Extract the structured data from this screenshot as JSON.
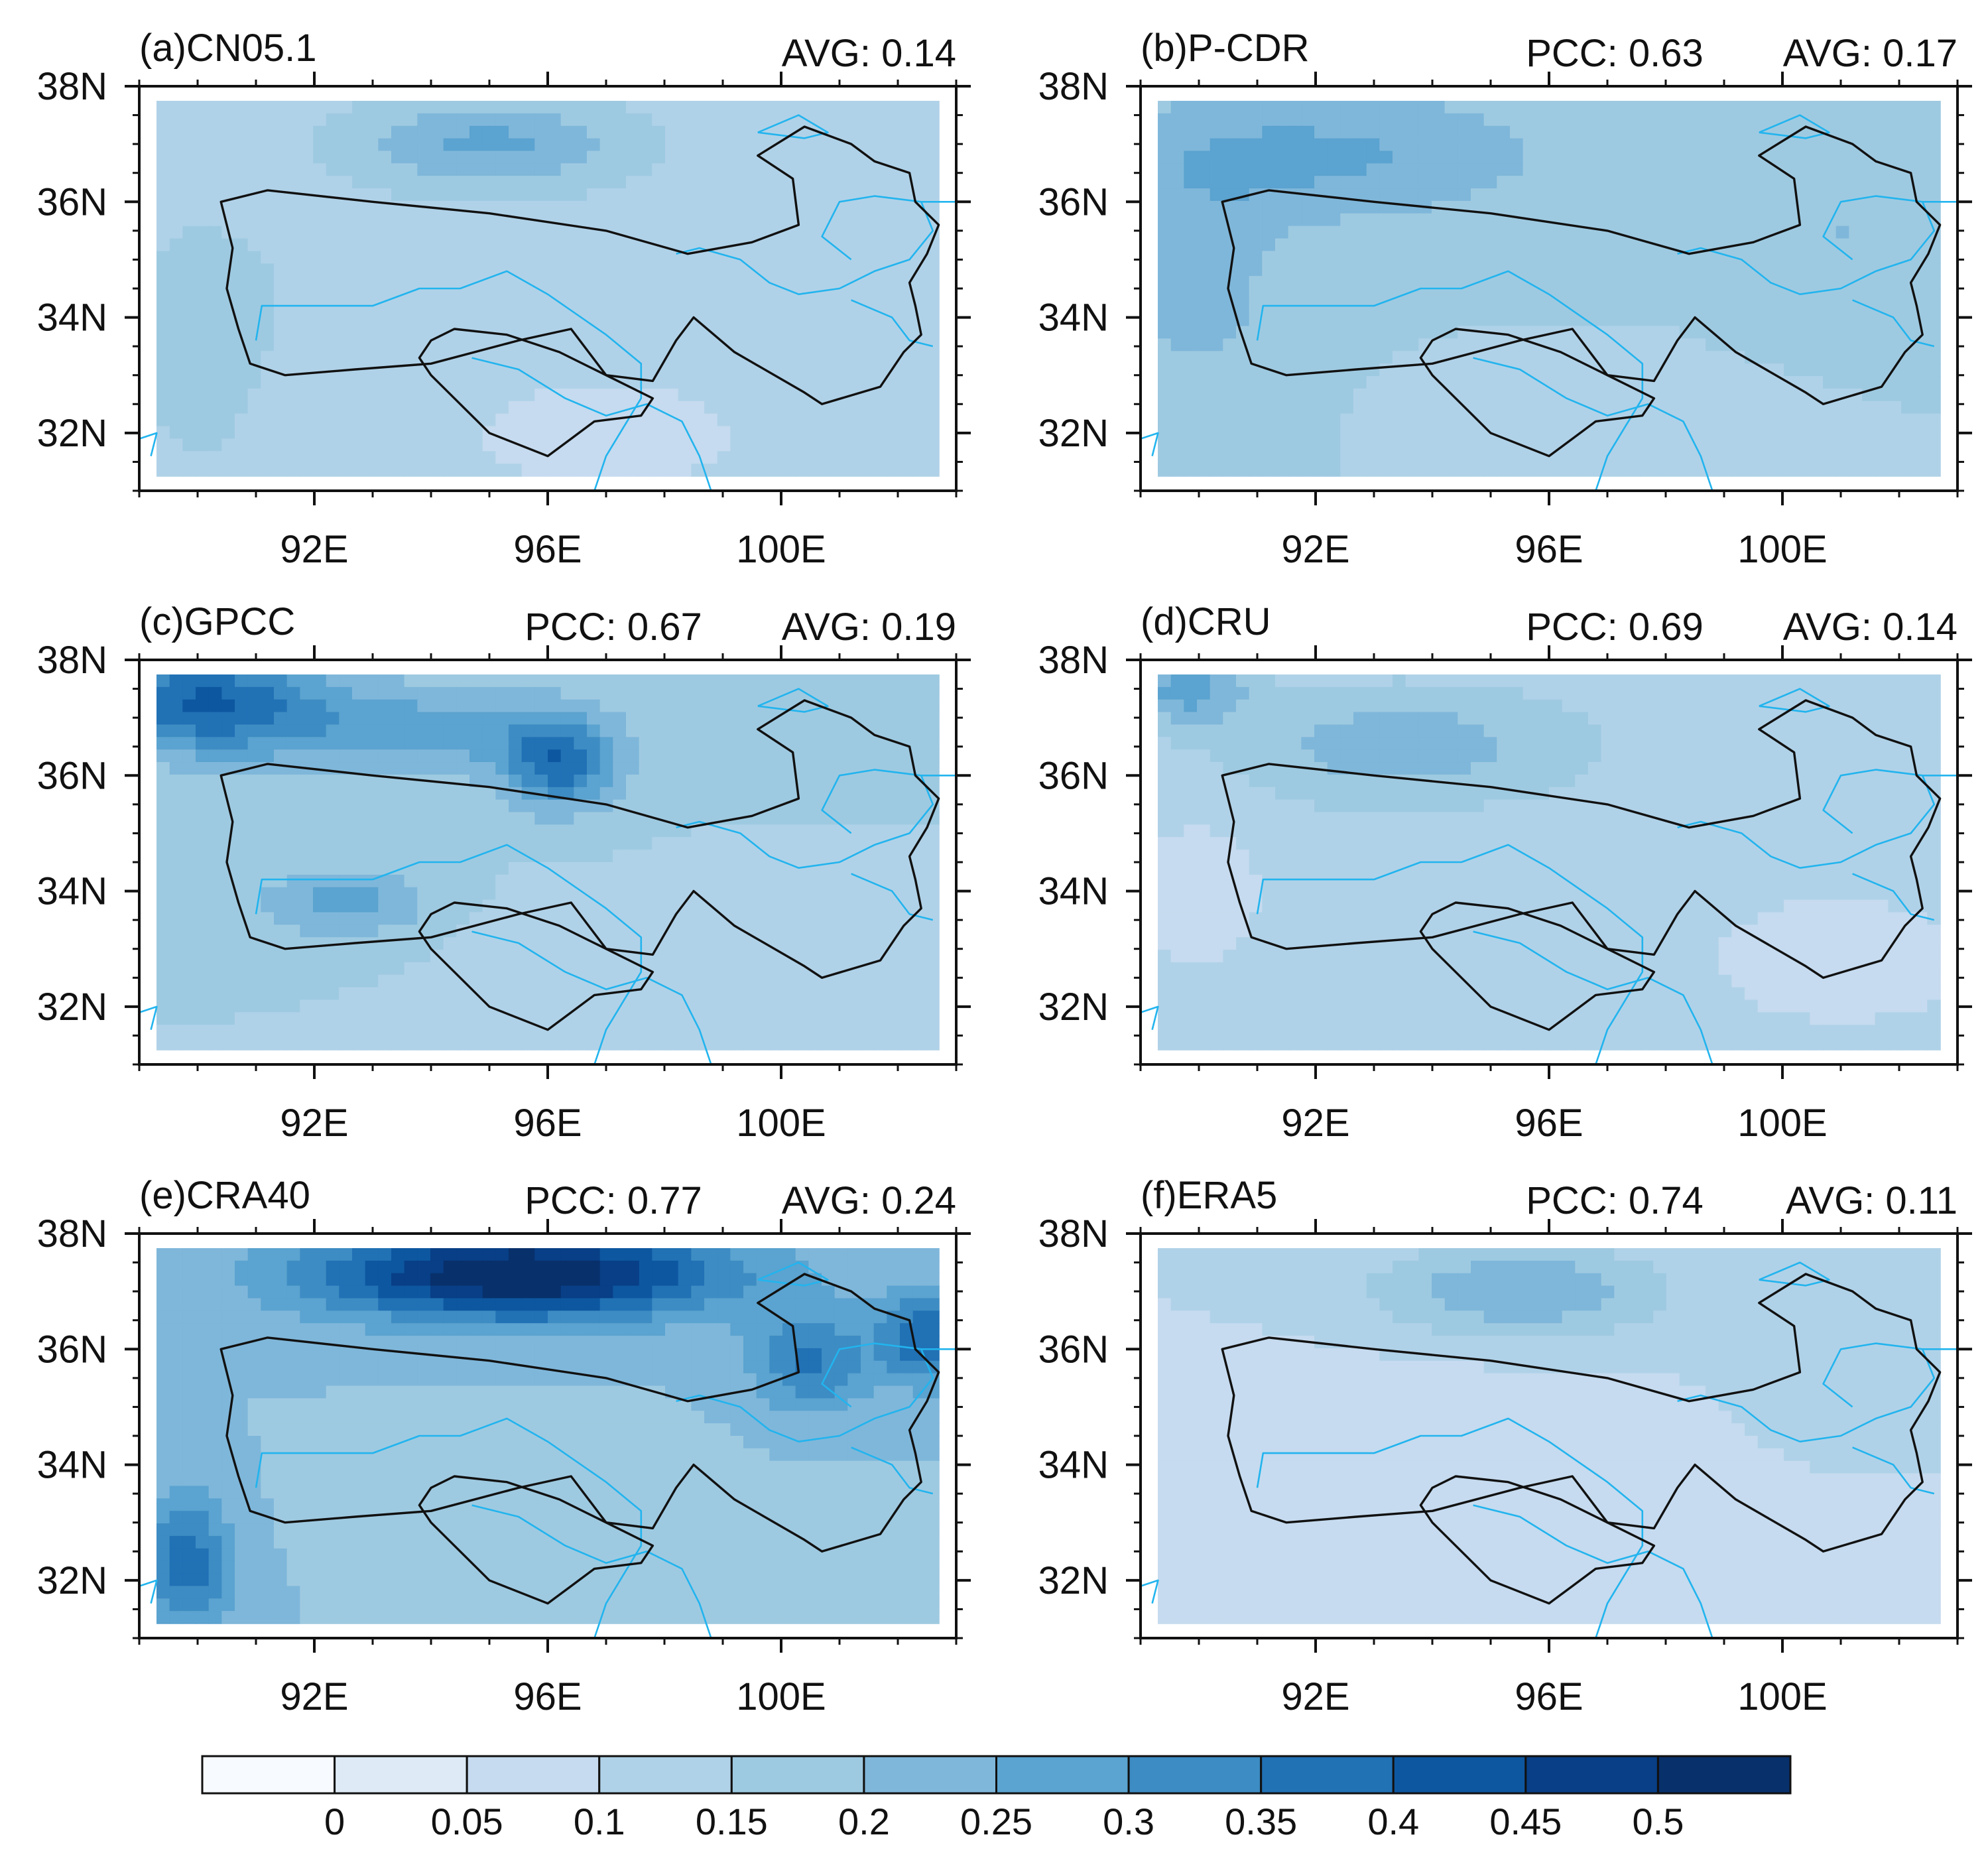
{
  "chart_data": {
    "type": "heatmap",
    "description_units": "filled contour maps, Qinghai–Tibet region",
    "lon_range": [
      89,
      103
    ],
    "lat_range": [
      31,
      38
    ],
    "x_ticks": [
      92,
      96,
      100
    ],
    "x_tick_labels": [
      "92E",
      "96E",
      "100E"
    ],
    "y_ticks": [
      32,
      34,
      36,
      38
    ],
    "y_tick_labels": [
      "32N",
      "34N",
      "36N",
      "38N"
    ],
    "stat_labels": {
      "pcc": "PCC: ",
      "avg": "AVG: "
    },
    "colorbar": {
      "levels": [
        0,
        0.05,
        0.1,
        0.15,
        0.2,
        0.25,
        0.3,
        0.35,
        0.4,
        0.45,
        0.5
      ],
      "tick_labels": [
        "0",
        "0.05",
        "0.1",
        "0.15",
        "0.2",
        "0.25",
        "0.3",
        "0.35",
        "0.4",
        "0.45",
        "0.5"
      ],
      "colors": [
        "#f7fbff",
        "#deebf7",
        "#c6dbef",
        "#b0d2e8",
        "#9ecae1",
        "#7fb7da",
        "#5ba3d0",
        "#3d8cc3",
        "#2171b5",
        "#0d57a0",
        "#083f86",
        "#08306b"
      ]
    },
    "panels": [
      {
        "label": "(a)CN05.1",
        "pcc": null,
        "avg": "0.14",
        "base": 0.12,
        "blobs": [
          {
            "lon": 95.0,
            "lat": 37.0,
            "rx": 2.5,
            "ry": 0.8,
            "v": 0.14
          },
          {
            "lon": 90.0,
            "lat": 33.5,
            "rx": 1.2,
            "ry": 2.2,
            "v": 0.06
          },
          {
            "lon": 94.0,
            "lat": 34.5,
            "rx": 3.5,
            "ry": 1.2,
            "v": 0.03
          },
          {
            "lon": 97.0,
            "lat": 32.0,
            "rx": 2.0,
            "ry": 0.8,
            "v": -0.06
          }
        ]
      },
      {
        "label": "(b)P-CDR",
        "pcc": "0.63",
        "avg": "0.17",
        "base": 0.15,
        "blobs": [
          {
            "lon": 92.0,
            "lat": 36.8,
            "rx": 4.0,
            "ry": 1.2,
            "v": 0.11
          },
          {
            "lon": 90.0,
            "lat": 34.5,
            "rx": 1.5,
            "ry": 2.0,
            "v": 0.07
          },
          {
            "lon": 101.0,
            "lat": 35.5,
            "rx": 1.5,
            "ry": 1.0,
            "v": 0.05
          },
          {
            "lon": 96.0,
            "lat": 32.0,
            "rx": 2.0,
            "ry": 0.8,
            "v": -0.03
          }
        ]
      },
      {
        "label": "(c)GPCC",
        "pcc": "0.67",
        "avg": "0.19",
        "base": 0.15,
        "blobs": [
          {
            "lon": 90.0,
            "lat": 37.3,
            "rx": 2.0,
            "ry": 0.9,
            "v": 0.24
          },
          {
            "lon": 96.2,
            "lat": 36.2,
            "rx": 1.0,
            "ry": 0.8,
            "v": 0.22
          },
          {
            "lon": 93.5,
            "lat": 36.8,
            "rx": 3.0,
            "ry": 0.8,
            "v": 0.12
          },
          {
            "lon": 92.5,
            "lat": 33.8,
            "rx": 1.5,
            "ry": 0.6,
            "v": 0.12
          },
          {
            "lon": 97.0,
            "lat": 33.0,
            "rx": 2.0,
            "ry": 0.9,
            "v": -0.05
          }
        ]
      },
      {
        "label": "(d)CRU",
        "pcc": "0.69",
        "avg": "0.14",
        "base": 0.12,
        "blobs": [
          {
            "lon": 93.5,
            "lat": 36.5,
            "rx": 3.0,
            "ry": 1.0,
            "v": 0.11
          },
          {
            "lon": 89.8,
            "lat": 37.5,
            "rx": 1.0,
            "ry": 0.6,
            "v": 0.15
          },
          {
            "lon": 90.0,
            "lat": 34.0,
            "rx": 1.2,
            "ry": 1.5,
            "v": -0.04
          },
          {
            "lon": 101.0,
            "lat": 32.8,
            "rx": 2.0,
            "ry": 1.0,
            "v": -0.06
          }
        ]
      },
      {
        "label": "(e)CRA40",
        "pcc": "0.77",
        "avg": "0.24",
        "base": 0.2,
        "blobs": [
          {
            "lon": 95.5,
            "lat": 37.3,
            "rx": 3.5,
            "ry": 0.8,
            "v": 0.36
          },
          {
            "lon": 100.5,
            "lat": 35.8,
            "rx": 1.0,
            "ry": 0.9,
            "v": 0.16
          },
          {
            "lon": 102.5,
            "lat": 36.2,
            "rx": 0.8,
            "ry": 0.8,
            "v": 0.2
          },
          {
            "lon": 89.8,
            "lat": 32.3,
            "rx": 0.8,
            "ry": 1.2,
            "v": 0.18
          },
          {
            "lon": 96.0,
            "lat": 33.3,
            "rx": 3.0,
            "ry": 1.0,
            "v": -0.05
          }
        ]
      },
      {
        "label": "(f)ERA5",
        "pcc": "0.74",
        "avg": "0.11",
        "base": 0.1,
        "blobs": [
          {
            "lon": 95.5,
            "lat": 37.0,
            "rx": 2.5,
            "ry": 0.8,
            "v": 0.15
          },
          {
            "lon": 100.8,
            "lat": 35.8,
            "rx": 1.2,
            "ry": 0.8,
            "v": 0.05
          },
          {
            "lon": 93.0,
            "lat": 34.5,
            "rx": 3.5,
            "ry": 1.3,
            "v": -0.03
          },
          {
            "lon": 96.0,
            "lat": 32.0,
            "rx": 2.0,
            "ry": 0.8,
            "v": -0.02
          }
        ]
      }
    ],
    "boundary": {
      "main": [
        [
          90.4,
          36.0
        ],
        [
          91.2,
          36.2
        ],
        [
          93.0,
          36.0
        ],
        [
          95.0,
          35.8
        ],
        [
          97.0,
          35.5
        ],
        [
          98.4,
          35.1
        ],
        [
          99.5,
          35.3
        ],
        [
          100.3,
          35.6
        ],
        [
          100.2,
          36.4
        ],
        [
          99.6,
          36.8
        ],
        [
          100.4,
          37.3
        ],
        [
          101.2,
          37.0
        ],
        [
          101.6,
          36.7
        ],
        [
          102.2,
          36.5
        ],
        [
          102.3,
          36.0
        ],
        [
          102.7,
          35.6
        ],
        [
          102.5,
          35.1
        ],
        [
          102.2,
          34.6
        ],
        [
          102.3,
          34.2
        ],
        [
          102.4,
          33.7
        ],
        [
          102.1,
          33.4
        ],
        [
          101.7,
          32.8
        ],
        [
          100.7,
          32.5
        ],
        [
          100.4,
          32.7
        ],
        [
          99.2,
          33.4
        ],
        [
          98.5,
          34.0
        ],
        [
          98.2,
          33.6
        ],
        [
          97.8,
          32.9
        ],
        [
          97.0,
          33.0
        ],
        [
          96.4,
          33.8
        ],
        [
          95.5,
          33.6
        ],
        [
          94.0,
          33.2
        ],
        [
          92.7,
          33.1
        ],
        [
          91.5,
          33.0
        ],
        [
          90.9,
          33.2
        ],
        [
          90.7,
          33.8
        ],
        [
          90.5,
          34.5
        ],
        [
          90.6,
          35.2
        ],
        [
          90.4,
          36.0
        ]
      ],
      "sub": [
        [
          94.0,
          33.6
        ],
        [
          94.4,
          33.8
        ],
        [
          95.3,
          33.7
        ],
        [
          96.2,
          33.4
        ],
        [
          97.0,
          33.0
        ],
        [
          97.8,
          32.6
        ],
        [
          97.6,
          32.3
        ],
        [
          96.8,
          32.2
        ],
        [
          96.4,
          31.9
        ],
        [
          96.0,
          31.6
        ],
        [
          95.5,
          31.8
        ],
        [
          95.0,
          32.0
        ],
        [
          94.5,
          32.5
        ],
        [
          94.0,
          33.0
        ],
        [
          93.8,
          33.3
        ],
        [
          94.0,
          33.6
        ]
      ]
    },
    "rivers": [
      [
        [
          91.0,
          33.6
        ],
        [
          91.1,
          34.2
        ],
        [
          92.0,
          34.2
        ],
        [
          93.0,
          34.2
        ],
        [
          93.8,
          34.5
        ],
        [
          94.5,
          34.5
        ],
        [
          95.3,
          34.8
        ],
        [
          96.0,
          34.4
        ],
        [
          97.0,
          33.7
        ],
        [
          97.6,
          33.2
        ],
        [
          97.6,
          32.6
        ],
        [
          97.3,
          32.1
        ],
        [
          97.0,
          31.6
        ],
        [
          96.8,
          31.0
        ]
      ],
      [
        [
          94.7,
          33.3
        ],
        [
          95.5,
          33.1
        ],
        [
          96.3,
          32.6
        ],
        [
          97.0,
          32.3
        ],
        [
          97.7,
          32.5
        ],
        [
          98.3,
          32.2
        ],
        [
          98.6,
          31.6
        ],
        [
          98.8,
          31.0
        ]
      ],
      [
        [
          98.2,
          35.1
        ],
        [
          98.6,
          35.2
        ],
        [
          99.3,
          35.0
        ],
        [
          99.8,
          34.6
        ],
        [
          100.3,
          34.4
        ],
        [
          101.0,
          34.5
        ],
        [
          101.6,
          34.8
        ],
        [
          102.2,
          35.0
        ],
        [
          102.6,
          35.5
        ],
        [
          102.4,
          36.0
        ],
        [
          101.6,
          36.1
        ],
        [
          101.0,
          36.0
        ],
        [
          100.7,
          35.4
        ],
        [
          101.2,
          35.0
        ]
      ],
      [
        [
          102.4,
          36.0
        ],
        [
          103.0,
          36.0
        ]
      ],
      [
        [
          101.2,
          34.3
        ],
        [
          101.9,
          34.0
        ],
        [
          102.2,
          33.6
        ],
        [
          102.6,
          33.5
        ]
      ],
      [
        [
          99.6,
          37.2
        ],
        [
          100.3,
          37.5
        ],
        [
          100.8,
          37.2
        ],
        [
          100.4,
          37.1
        ],
        [
          99.6,
          37.2
        ]
      ],
      [
        [
          89.0,
          31.9
        ],
        [
          89.3,
          32.0
        ],
        [
          89.2,
          31.6
        ]
      ]
    ]
  }
}
